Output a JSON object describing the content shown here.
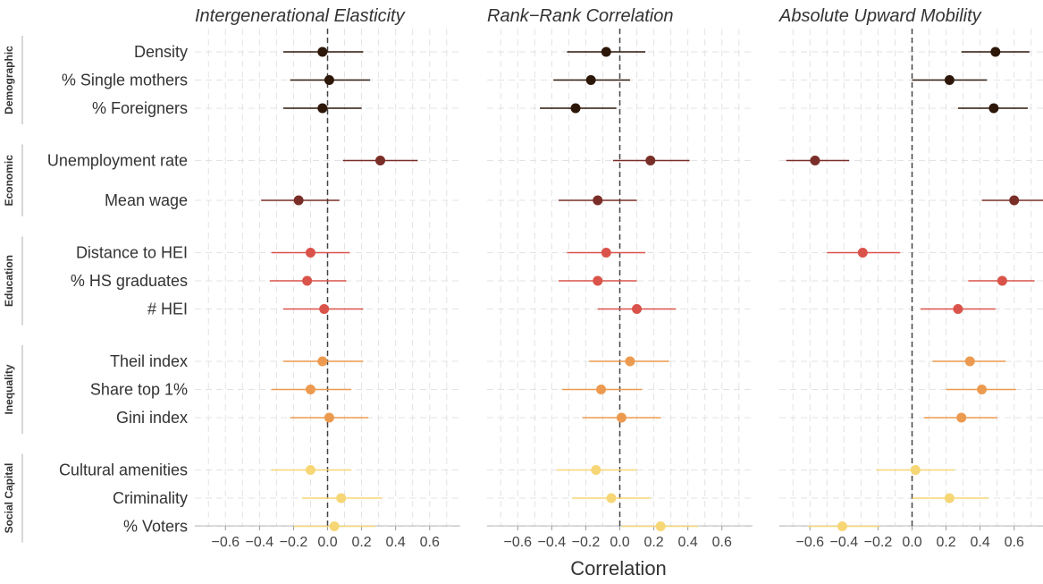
{
  "chart_data": {
    "type": "scatter",
    "chart_style": "coefficient plot with confidence intervals, faceted by panel and grouped by category",
    "xlabel": "Correlation",
    "xticks": [
      -0.6,
      -0.4,
      -0.2,
      0.0,
      0.2,
      0.4,
      0.6
    ],
    "xtick_labels": [
      "−0.6",
      "−0.4",
      "−0.2",
      "0.0",
      "0.2",
      "0.4",
      "0.6"
    ],
    "xlim": [
      -0.78,
      0.78
    ],
    "grid": true,
    "reference_line": 0,
    "groups": [
      {
        "name": "Demographic",
        "color": "#2d1708",
        "rows": [
          "Density",
          "% Single mothers",
          "% Foreigners"
        ]
      },
      {
        "name": "Economic",
        "color": "#7a2e28",
        "rows": [
          "Unemployment rate",
          "Mean wage"
        ]
      },
      {
        "name": "Education",
        "color": "#d9534a",
        "rows": [
          "Distance to HEI",
          "% HS graduates",
          "# HEI"
        ]
      },
      {
        "name": "Inequality",
        "color": "#ec9a4f",
        "rows": [
          "Theil index",
          "Share top 1%",
          "Gini index"
        ]
      },
      {
        "name": "Social Capital",
        "color": "#f6d675",
        "rows": [
          "Cultural amenities",
          "Criminality",
          "% Voters"
        ]
      }
    ],
    "panels": [
      {
        "title": "Intergenerational Elasticity",
        "points": [
          {
            "row": "Density",
            "estimate": -0.03,
            "low": -0.26,
            "high": 0.21
          },
          {
            "row": "% Single mothers",
            "estimate": 0.01,
            "low": -0.22,
            "high": 0.25
          },
          {
            "row": "% Foreigners",
            "estimate": -0.03,
            "low": -0.26,
            "high": 0.2
          },
          {
            "row": "Unemployment rate",
            "estimate": 0.31,
            "low": 0.09,
            "high": 0.53
          },
          {
            "row": "Mean wage",
            "estimate": -0.17,
            "low": -0.39,
            "high": 0.07
          },
          {
            "row": "Distance to HEI",
            "estimate": -0.1,
            "low": -0.33,
            "high": 0.13
          },
          {
            "row": "% HS graduates",
            "estimate": -0.12,
            "low": -0.34,
            "high": 0.11
          },
          {
            "row": "# HEI",
            "estimate": -0.02,
            "low": -0.26,
            "high": 0.21
          },
          {
            "row": "Theil index",
            "estimate": -0.03,
            "low": -0.26,
            "high": 0.21
          },
          {
            "row": "Share top 1%",
            "estimate": -0.1,
            "low": -0.33,
            "high": 0.14
          },
          {
            "row": "Gini index",
            "estimate": 0.01,
            "low": -0.22,
            "high": 0.24
          },
          {
            "row": "Cultural amenities",
            "estimate": -0.1,
            "low": -0.33,
            "high": 0.14
          },
          {
            "row": "Criminality",
            "estimate": 0.08,
            "low": -0.15,
            "high": 0.32
          },
          {
            "row": "% Voters",
            "estimate": 0.04,
            "low": -0.2,
            "high": 0.28
          }
        ]
      },
      {
        "title": "Rank−Rank Correlation",
        "points": [
          {
            "row": "Density",
            "estimate": -0.08,
            "low": -0.31,
            "high": 0.15
          },
          {
            "row": "% Single mothers",
            "estimate": -0.17,
            "low": -0.39,
            "high": 0.06
          },
          {
            "row": "% Foreigners",
            "estimate": -0.26,
            "low": -0.47,
            "high": -0.02
          },
          {
            "row": "Unemployment rate",
            "estimate": 0.18,
            "low": -0.04,
            "high": 0.41
          },
          {
            "row": "Mean wage",
            "estimate": -0.13,
            "low": -0.36,
            "high": 0.1
          },
          {
            "row": "Distance to HEI",
            "estimate": -0.08,
            "low": -0.31,
            "high": 0.15
          },
          {
            "row": "% HS graduates",
            "estimate": -0.13,
            "low": -0.36,
            "high": 0.1
          },
          {
            "row": "# HEI",
            "estimate": 0.1,
            "low": -0.13,
            "high": 0.33
          },
          {
            "row": "Theil index",
            "estimate": 0.06,
            "low": -0.18,
            "high": 0.29
          },
          {
            "row": "Share top 1%",
            "estimate": -0.11,
            "low": -0.34,
            "high": 0.13
          },
          {
            "row": "Gini index",
            "estimate": 0.01,
            "low": -0.22,
            "high": 0.24
          },
          {
            "row": "Cultural amenities",
            "estimate": -0.14,
            "low": -0.37,
            "high": 0.1
          },
          {
            "row": "Criminality",
            "estimate": -0.05,
            "low": -0.28,
            "high": 0.18
          },
          {
            "row": "% Voters",
            "estimate": 0.24,
            "low": 0.01,
            "high": 0.46
          }
        ]
      },
      {
        "title": "Absolute Upward Mobility",
        "points": [
          {
            "row": "Density",
            "estimate": 0.49,
            "low": 0.29,
            "high": 0.69
          },
          {
            "row": "% Single mothers",
            "estimate": 0.22,
            "low": 0.0,
            "high": 0.44
          },
          {
            "row": "% Foreigners",
            "estimate": 0.48,
            "low": 0.27,
            "high": 0.68
          },
          {
            "row": "Unemployment rate",
            "estimate": -0.57,
            "low": -0.74,
            "high": -0.37
          },
          {
            "row": "Mean wage",
            "estimate": 0.6,
            "low": 0.41,
            "high": 0.78
          },
          {
            "row": "Distance to HEI",
            "estimate": -0.29,
            "low": -0.5,
            "high": -0.07
          },
          {
            "row": "% HS graduates",
            "estimate": 0.53,
            "low": 0.33,
            "high": 0.72
          },
          {
            "row": "# HEI",
            "estimate": 0.27,
            "low": 0.05,
            "high": 0.49
          },
          {
            "row": "Theil index",
            "estimate": 0.34,
            "low": 0.12,
            "high": 0.55
          },
          {
            "row": "Share top 1%",
            "estimate": 0.41,
            "low": 0.2,
            "high": 0.61
          },
          {
            "row": "Gini index",
            "estimate": 0.29,
            "low": 0.07,
            "high": 0.5
          },
          {
            "row": "Cultural amenities",
            "estimate": 0.02,
            "low": -0.21,
            "high": 0.25
          },
          {
            "row": "Criminality",
            "estimate": 0.22,
            "low": 0.0,
            "high": 0.45
          },
          {
            "row": "% Voters",
            "estimate": -0.41,
            "low": -0.61,
            "high": -0.19
          }
        ]
      }
    ]
  }
}
